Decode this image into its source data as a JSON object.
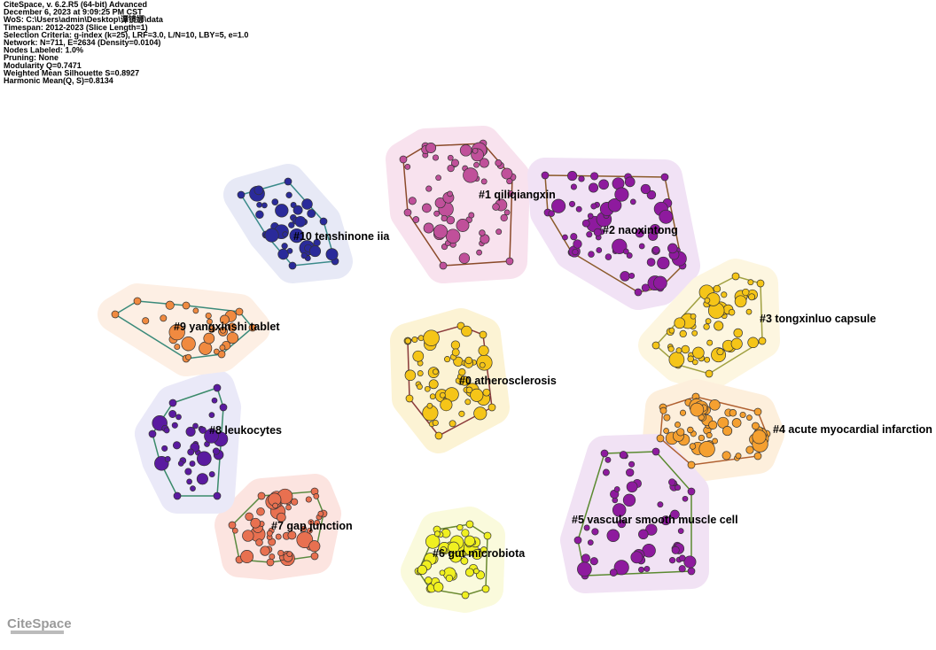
{
  "header": {
    "lines": [
      "CiteSpace, v. 6.2.R5 (64-bit) Advanced",
      "December 6, 2023 at 9:09:25 PM CST",
      "WoS: C:\\Users\\admin\\Desktop\\谭镜娜\\data",
      "Timespan: 2012-2023 (Slice Length=1)",
      "Selection Criteria: g-index (k=25), LRF=3.0, L/N=10, LBY=5, e=1.0",
      "Network: N=711, E=2634 (Density=0.0104)",
      "Nodes Labeled: 1.0%",
      "Pruning: None",
      "Modularity Q=0.7471",
      "Weighted Mean Silhouette S=0.8927",
      "Harmonic Mean(Q, S)=0.8134"
    ]
  },
  "clusters": [
    {
      "label": "#0 atherosclerosis"
    },
    {
      "label": "#1 qiliqiangxin"
    },
    {
      "label": "#2 naoxintong"
    },
    {
      "label": "#3 tongxinluo capsule"
    },
    {
      "label": "#4 acute myocardial infarction"
    },
    {
      "label": "#5 vascular smooth muscle cell"
    },
    {
      "label": "#6 gut microbiota"
    },
    {
      "label": "#7 gap junction"
    },
    {
      "label": "#8 leukocytes"
    },
    {
      "label": "#9 yangxinshi tablet"
    },
    {
      "label": "#10 tenshinone iia"
    }
  ],
  "logo": "CiteSpace"
}
